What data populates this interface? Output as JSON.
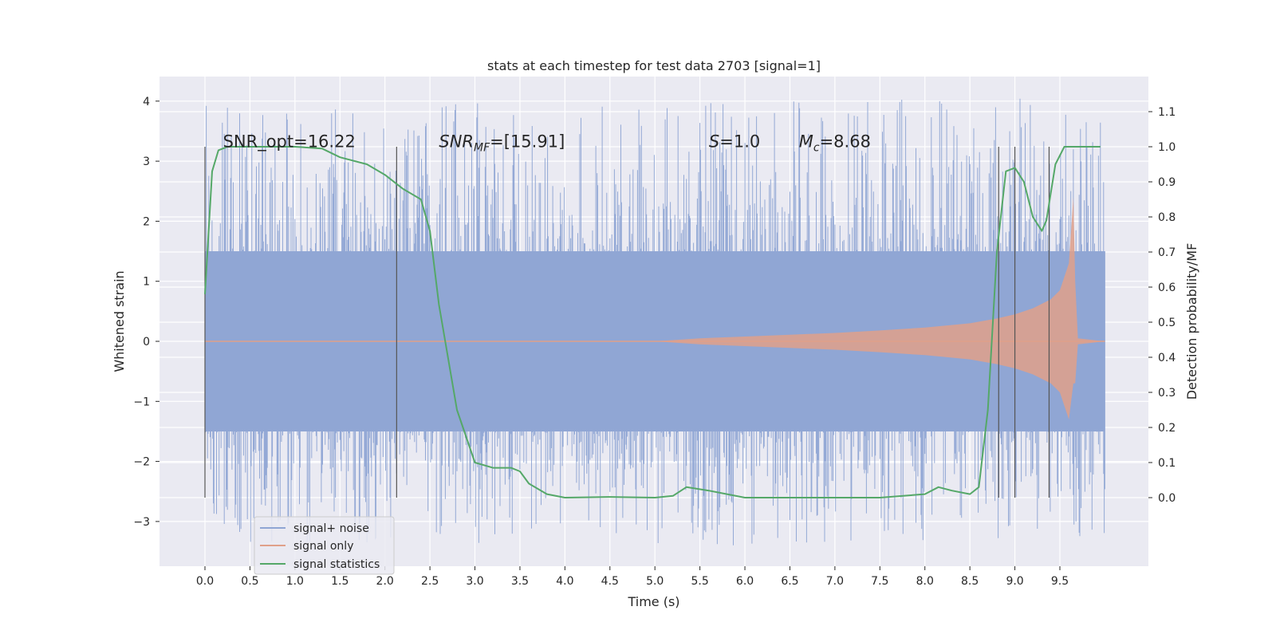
{
  "chart_data": {
    "type": "line",
    "title": "stats at each timestep for test data 2703 [signal=1]",
    "xlabel": "Time (s)",
    "ylabel": "Whitened strain",
    "y2label": "Detection probability/MF",
    "xlim": [
      -0.5,
      10.5
    ],
    "ylim": [
      -3.8,
      4.4
    ],
    "y2lim": [
      -0.2,
      1.2
    ],
    "x_ticks": [
      "0.0",
      "0.5",
      "1.0",
      "1.5",
      "2.0",
      "2.5",
      "3.0",
      "3.5",
      "4.0",
      "4.5",
      "5.0",
      "5.5",
      "6.0",
      "6.5",
      "7.0",
      "7.5",
      "8.0",
      "8.5",
      "9.0",
      "9.5"
    ],
    "y_ticks": [
      "4",
      "3",
      "2",
      "1",
      "0",
      "−1",
      "−2",
      "−3"
    ],
    "y2_ticks": [
      "1.1",
      "1.0",
      "0.9",
      "0.8",
      "0.7",
      "0.6",
      "0.5",
      "0.4",
      "0.3",
      "0.2",
      "0.1",
      "0.0"
    ],
    "grid": true,
    "legend_position": "lower-left",
    "annotations": [
      {
        "text": "SNR_opt=16.22",
        "x": 0.2,
        "y": 3.3
      },
      {
        "text": "SNR_MF=[15.91]",
        "x": 2.6,
        "y": 3.3
      },
      {
        "text": "S=1.0",
        "x": 5.6,
        "y": 3.3
      },
      {
        "text": "M_c=8.68",
        "x": 6.6,
        "y": 3.3
      }
    ],
    "vertical_markers_x": [
      0.0,
      2.13,
      8.82,
      9.0,
      9.38
    ],
    "series": [
      {
        "name": "signal+ noise",
        "color": "#8fa5d4",
        "description_range": [
          0.0,
          10.0
        ],
        "amplitude_typical": [
          -1.5,
          1.5
        ],
        "amplitude_peaks": [
          -3.4,
          4.05
        ]
      },
      {
        "name": "signal only",
        "color": "#e0a08a",
        "x": [
          0.0,
          5.0,
          5.5,
          6.0,
          6.5,
          7.0,
          7.5,
          8.0,
          8.5,
          8.8,
          9.0,
          9.2,
          9.4,
          9.5,
          9.6,
          9.65,
          9.67,
          9.7,
          10.0
        ],
        "envelope": [
          0.0,
          0.0,
          0.05,
          0.08,
          0.11,
          0.14,
          0.18,
          0.23,
          0.3,
          0.38,
          0.45,
          0.55,
          0.7,
          0.85,
          1.3,
          2.4,
          1.0,
          0.05,
          0.0
        ]
      },
      {
        "name": "signal statistics",
        "color": "#55a868",
        "x": [
          0.0,
          0.08,
          0.15,
          0.25,
          0.5,
          1.0,
          1.3,
          1.5,
          1.8,
          2.0,
          2.2,
          2.4,
          2.5,
          2.6,
          2.8,
          3.0,
          3.2,
          3.4,
          3.5,
          3.6,
          3.8,
          4.0,
          4.5,
          5.0,
          5.2,
          5.35,
          5.6,
          6.0,
          6.5,
          7.0,
          7.5,
          8.0,
          8.15,
          8.3,
          8.5,
          8.6,
          8.7,
          8.8,
          8.9,
          9.0,
          9.1,
          9.2,
          9.3,
          9.35,
          9.45,
          9.55,
          9.7,
          9.95
        ],
        "values": [
          0.58,
          0.93,
          0.99,
          1.0,
          1.0,
          1.0,
          0.995,
          0.97,
          0.95,
          0.92,
          0.88,
          0.85,
          0.76,
          0.55,
          0.25,
          0.1,
          0.085,
          0.085,
          0.075,
          0.04,
          0.01,
          0.0,
          0.002,
          0.0,
          0.005,
          0.03,
          0.02,
          0.0,
          0.0,
          0.0,
          0.0,
          0.01,
          0.03,
          0.02,
          0.01,
          0.03,
          0.25,
          0.7,
          0.93,
          0.94,
          0.9,
          0.8,
          0.76,
          0.79,
          0.95,
          1.0,
          1.0,
          1.0
        ]
      }
    ]
  }
}
